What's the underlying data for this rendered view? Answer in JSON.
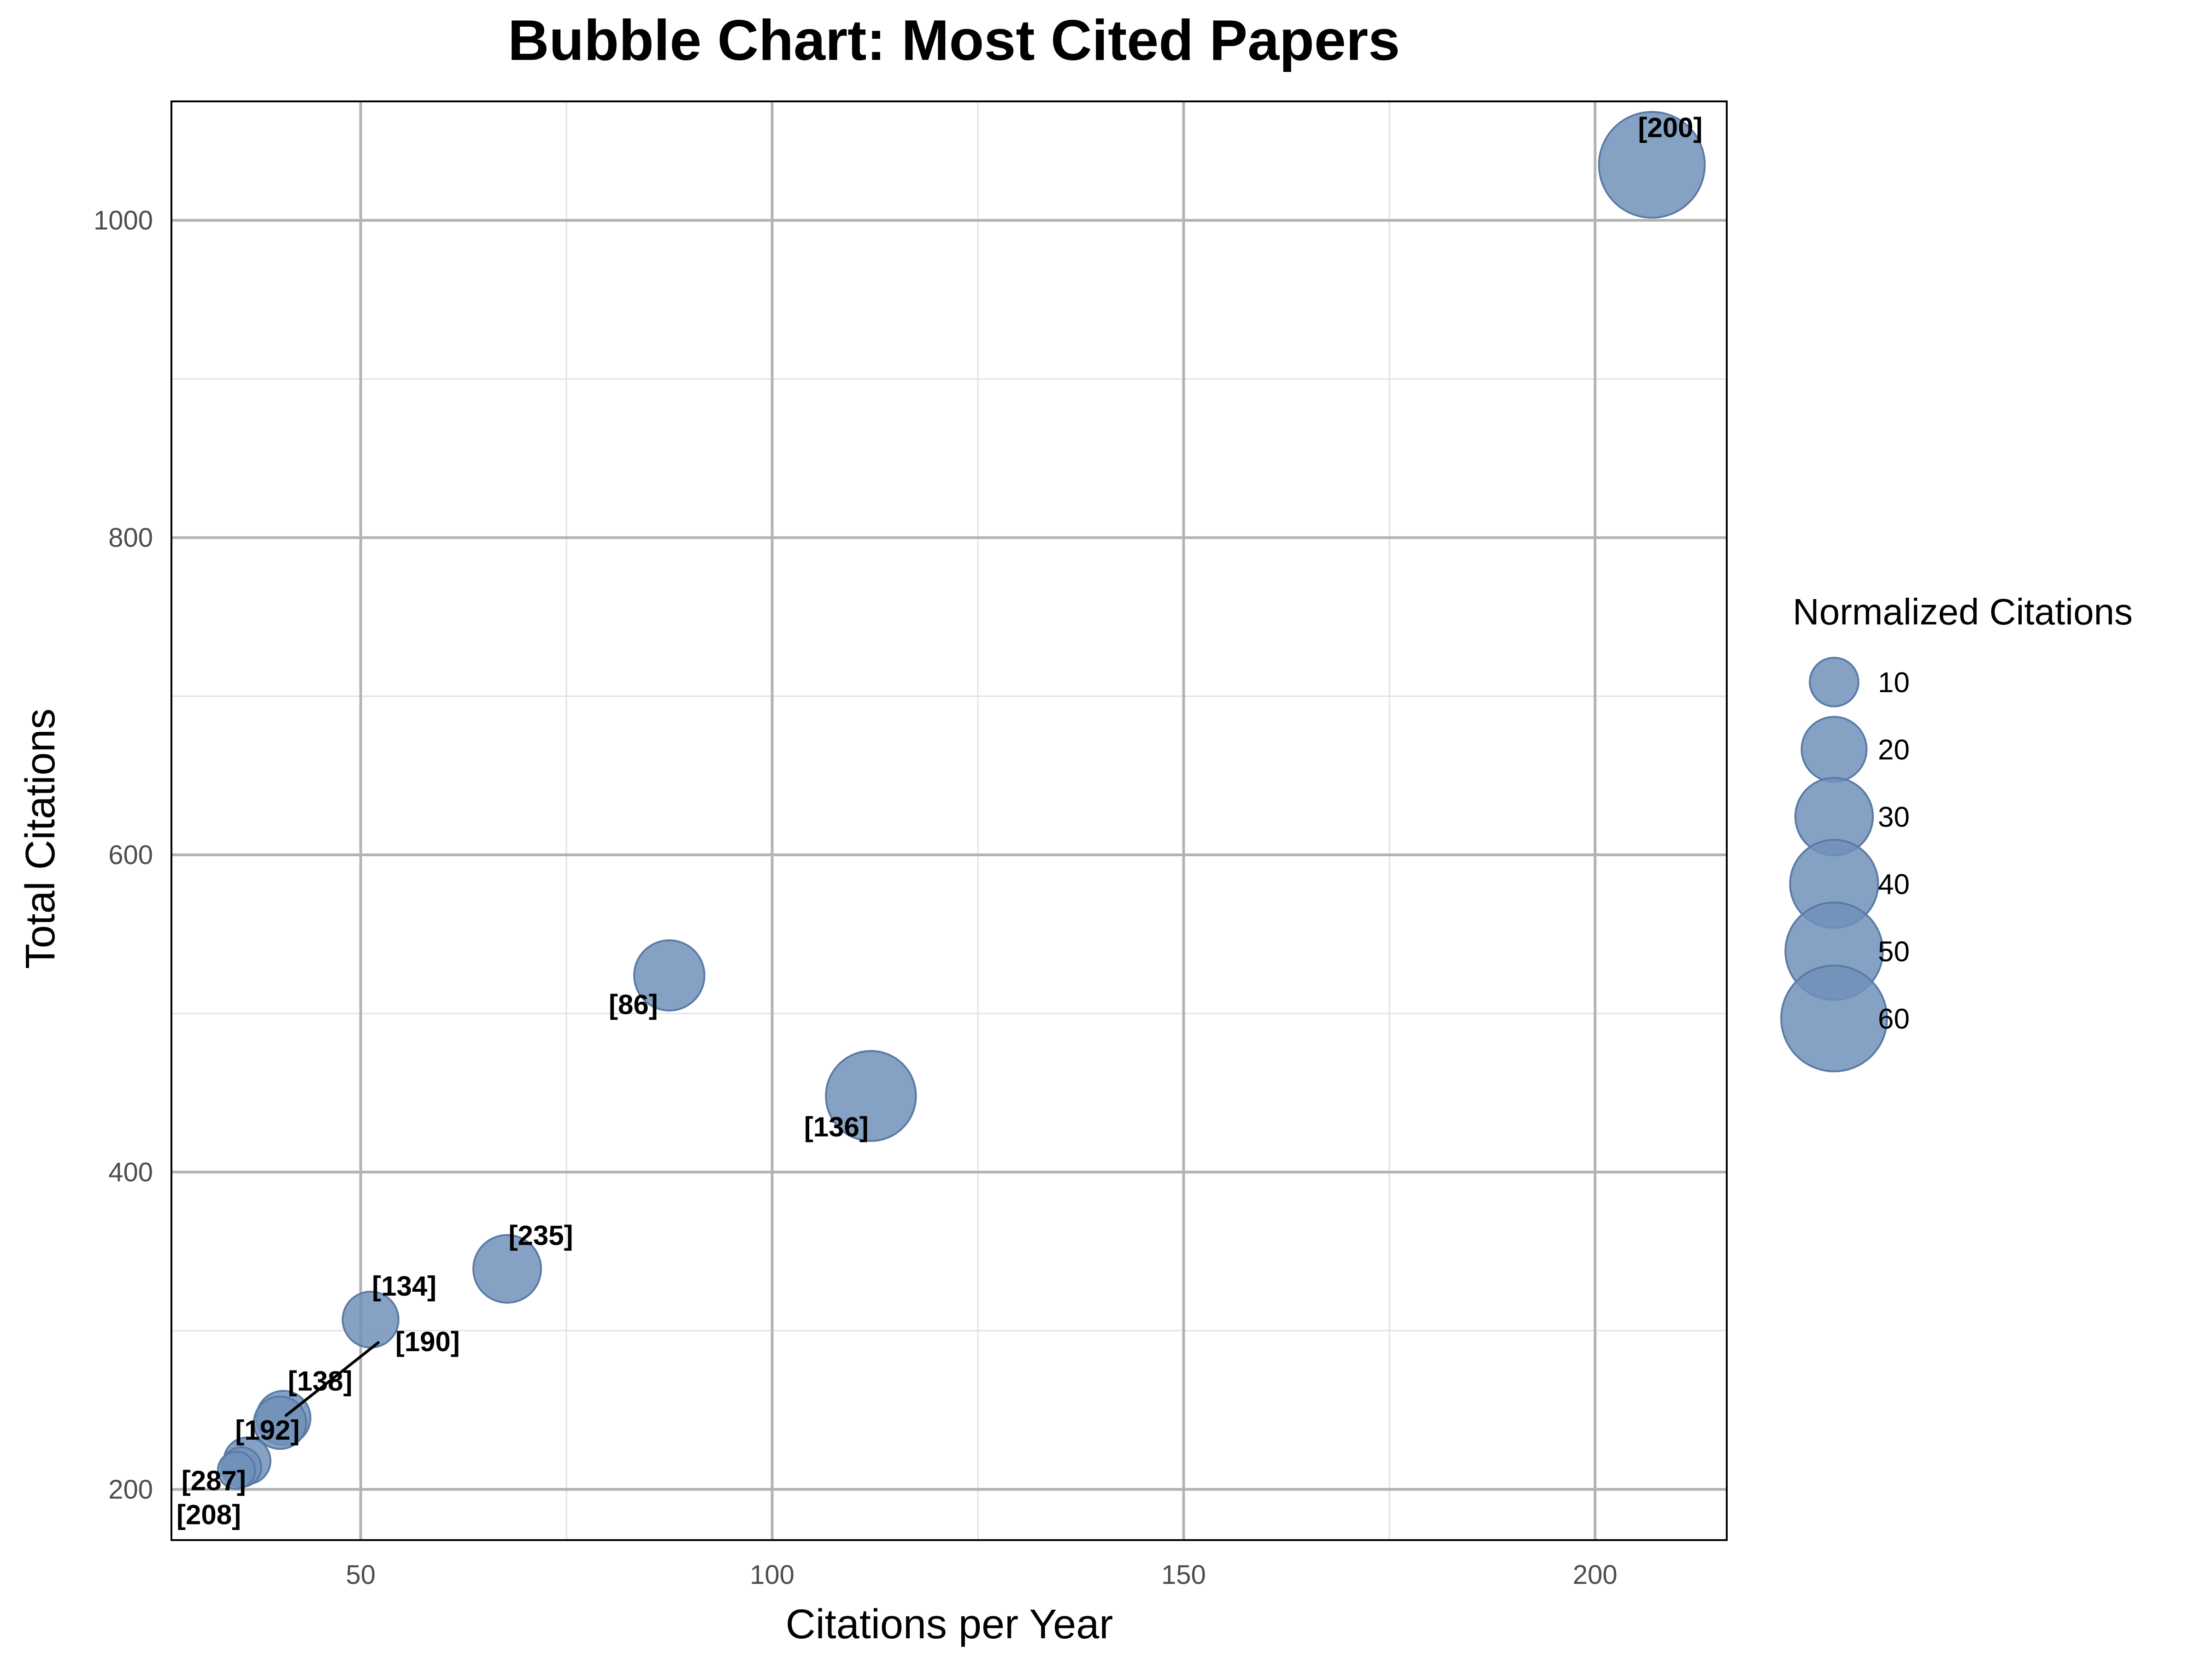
{
  "chart_data": {
    "type": "scatter",
    "title": "Bubble Chart: Most Cited Papers",
    "xlabel": "Citations per Year",
    "ylabel": "Total Citations",
    "xlim": [
      27,
      216
    ],
    "ylim": [
      168,
      1075
    ],
    "x_ticks": [
      50,
      100,
      150,
      200
    ],
    "y_ticks": [
      200,
      400,
      600,
      800,
      1000
    ],
    "grid": true,
    "marker_color": "#7090B8",
    "marker_edge_color": "#5a7aa6",
    "size_variable": "Normalized Citations",
    "legend": {
      "title": "Normalized Citations",
      "placement": "right",
      "entries": [
        10,
        20,
        30,
        40,
        50,
        60
      ]
    },
    "points": [
      {
        "label": "[200]",
        "x": 206.9,
        "y": 1035,
        "size": 60
      },
      {
        "label": "[136]",
        "x": 112.0,
        "y": 448,
        "size": 42
      },
      {
        "label": "[86]",
        "x": 87.5,
        "y": 524,
        "size": 24
      },
      {
        "label": "[235]",
        "x": 67.8,
        "y": 339,
        "size": 22
      },
      {
        "label": "[134]",
        "x": 51.2,
        "y": 307,
        "size": 14
      },
      {
        "label": "[190]",
        "x": 40.6,
        "y": 245,
        "size": 13
      },
      {
        "label": "[138]",
        "x": 40.2,
        "y": 242,
        "size": 12
      },
      {
        "label": "[192]",
        "x": 36.2,
        "y": 218,
        "size": 9
      },
      {
        "label": "[287]",
        "x": 35.5,
        "y": 214,
        "size": 6
      },
      {
        "label": "[208]",
        "x": 34.9,
        "y": 212,
        "size": 5
      }
    ]
  }
}
